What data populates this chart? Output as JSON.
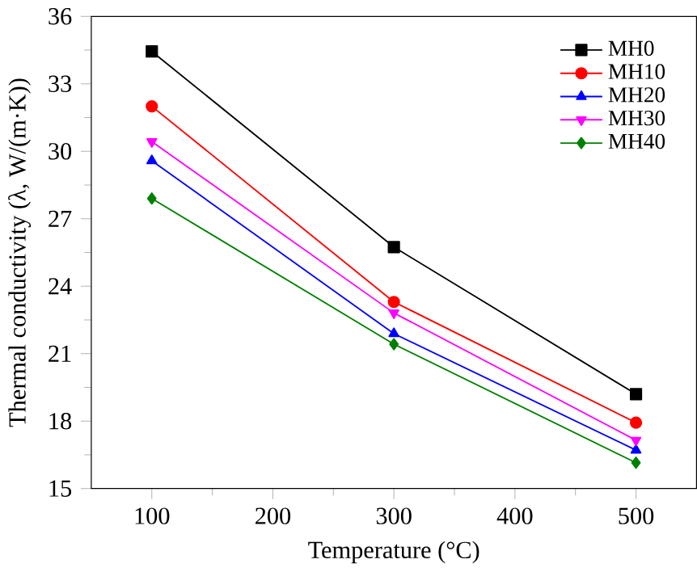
{
  "chart_data": {
    "type": "line",
    "xlabel": "Temperature (°C)",
    "ylabel": "Thermal conductivity (λ, W/(m·K))",
    "x": [
      100,
      300,
      500
    ],
    "xlim": [
      50,
      550
    ],
    "xticks": [
      100,
      200,
      300,
      400,
      500
    ],
    "ylim": [
      15,
      36
    ],
    "yticks": [
      15,
      18,
      21,
      24,
      27,
      30,
      33,
      36
    ],
    "legend": "top right",
    "grid": false,
    "line_style": "solid",
    "series": [
      {
        "name": "MH0",
        "color": "#000000",
        "marker": "square",
        "values": [
          34.44,
          25.74,
          19.2
        ]
      },
      {
        "name": "MH10",
        "color": "#ff0000",
        "marker": "circle",
        "values": [
          32.0,
          23.3,
          17.93
        ]
      },
      {
        "name": "MH20",
        "color": "#0000ff",
        "marker": "triangle",
        "values": [
          29.58,
          21.89,
          16.71
        ]
      },
      {
        "name": "MH30",
        "color": "#ff00ff",
        "marker": "triangle down",
        "values": [
          30.43,
          22.81,
          17.15
        ]
      },
      {
        "name": "MH40",
        "color": "#008000",
        "marker": "diamond",
        "values": [
          27.9,
          21.42,
          16.15
        ]
      }
    ]
  }
}
